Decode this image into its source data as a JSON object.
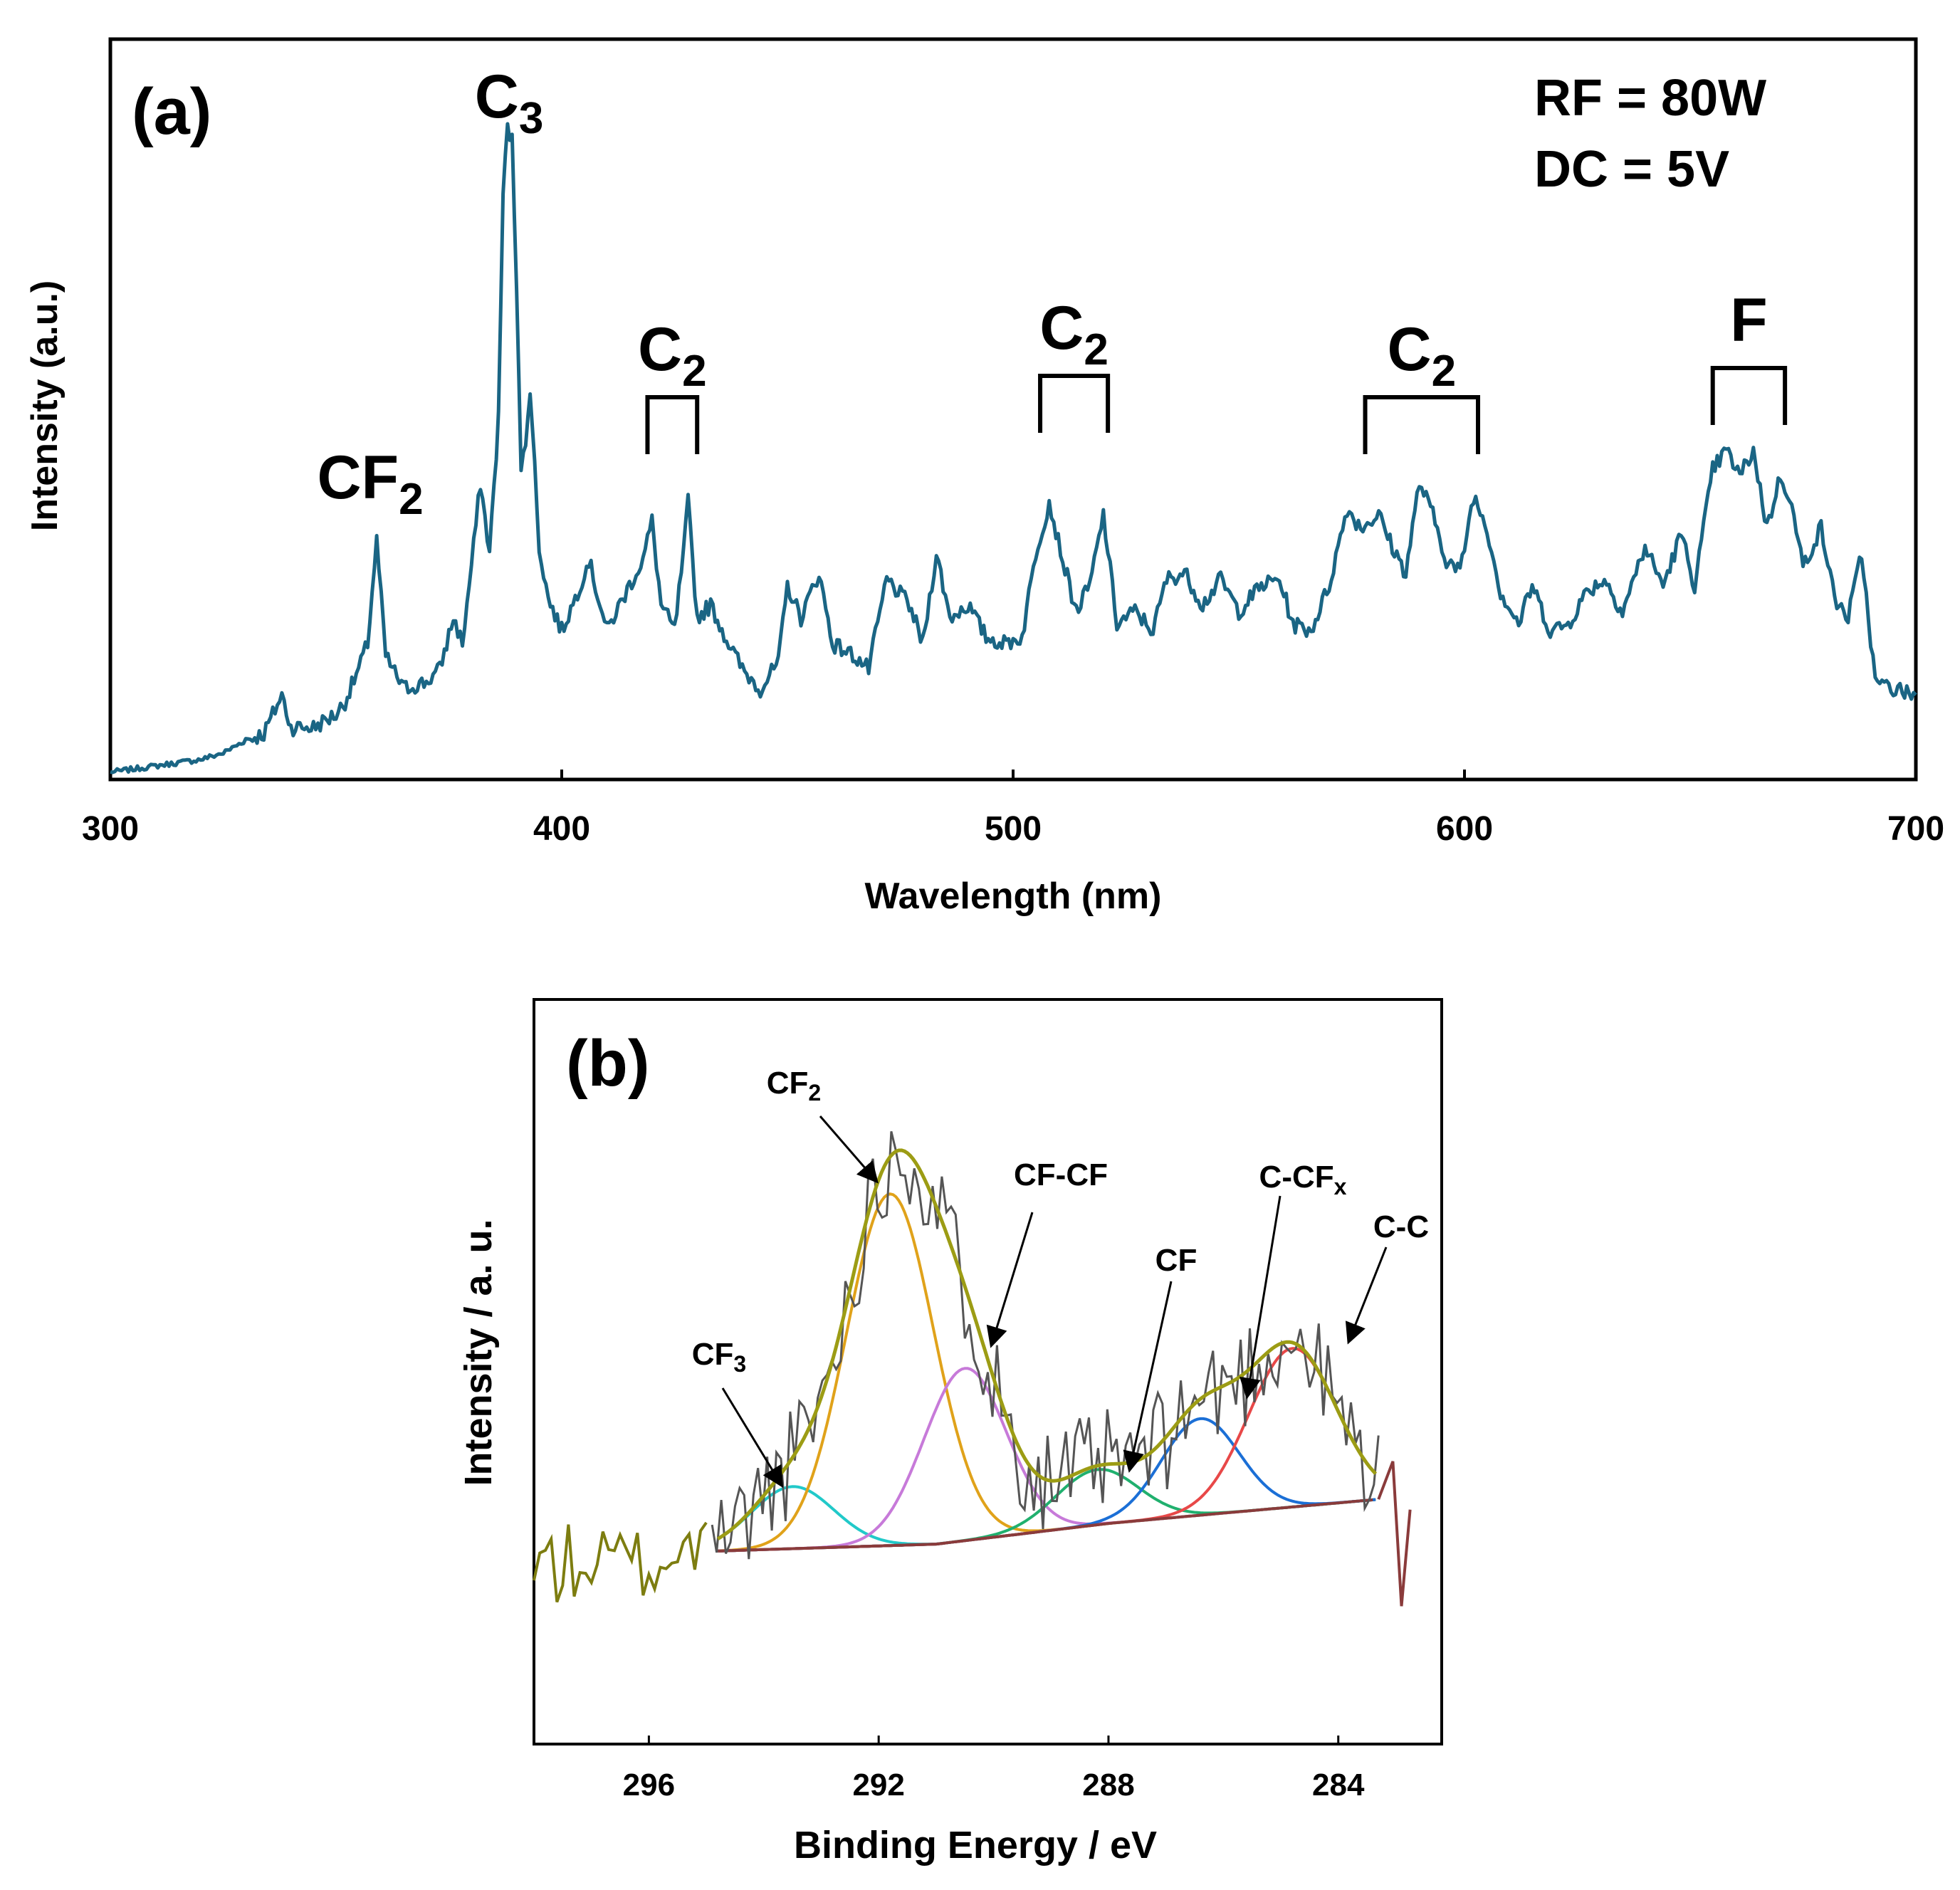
{
  "chart_data": [
    {
      "panel": "(a)",
      "type": "line",
      "xlabel": "Wavelength (nm)",
      "ylabel": "Intensity (a.u.)",
      "xlim": [
        300,
        700
      ],
      "ylim": [
        0,
        100
      ],
      "xticks": [
        300,
        400,
        500,
        600,
        700
      ],
      "line_color": "#1a6584",
      "conditions": [
        "RF = 80W",
        "DC = 5V"
      ],
      "anchor_points": [
        [
          300,
          0
        ],
        [
          310,
          1
        ],
        [
          320,
          2
        ],
        [
          325,
          3
        ],
        [
          330,
          5
        ],
        [
          334,
          6
        ],
        [
          336,
          9
        ],
        [
          338,
          12
        ],
        [
          340,
          7
        ],
        [
          345,
          7
        ],
        [
          350,
          9
        ],
        [
          352,
          11
        ],
        [
          355,
          16
        ],
        [
          357,
          20
        ],
        [
          359,
          36
        ],
        [
          361,
          18
        ],
        [
          365,
          13
        ],
        [
          370,
          14
        ],
        [
          373,
          16
        ],
        [
          376,
          24
        ],
        [
          378,
          20
        ],
        [
          380,
          32
        ],
        [
          382,
          45
        ],
        [
          384,
          34
        ],
        [
          386,
          55
        ],
        [
          387,
          90
        ],
        [
          388,
          100
        ],
        [
          389,
          98
        ],
        [
          390,
          76
        ],
        [
          391,
          48
        ],
        [
          392,
          50
        ],
        [
          393,
          60
        ],
        [
          395,
          35
        ],
        [
          397,
          27
        ],
        [
          400,
          22
        ],
        [
          403,
          27
        ],
        [
          406,
          33
        ],
        [
          410,
          22
        ],
        [
          415,
          29
        ],
        [
          418,
          33
        ],
        [
          420,
          39
        ],
        [
          422,
          26
        ],
        [
          425,
          22
        ],
        [
          427,
          34
        ],
        [
          428,
          42
        ],
        [
          430,
          24
        ],
        [
          433,
          26
        ],
        [
          437,
          20
        ],
        [
          440,
          16
        ],
        [
          444,
          13
        ],
        [
          448,
          17
        ],
        [
          450,
          29
        ],
        [
          453,
          24
        ],
        [
          457,
          31
        ],
        [
          460,
          20
        ],
        [
          465,
          18
        ],
        [
          468,
          16
        ],
        [
          472,
          30
        ],
        [
          477,
          26
        ],
        [
          480,
          20
        ],
        [
          483,
          34
        ],
        [
          486,
          24
        ],
        [
          490,
          26
        ],
        [
          494,
          21
        ],
        [
          498,
          20
        ],
        [
          502,
          21
        ],
        [
          505,
          34
        ],
        [
          508,
          42
        ],
        [
          511,
          33
        ],
        [
          514,
          25
        ],
        [
          517,
          29
        ],
        [
          520,
          40
        ],
        [
          523,
          23
        ],
        [
          527,
          25
        ],
        [
          531,
          22
        ],
        [
          534,
          30
        ],
        [
          538,
          31
        ],
        [
          542,
          26
        ],
        [
          546,
          30
        ],
        [
          550,
          25
        ],
        [
          555,
          29
        ],
        [
          559,
          30
        ],
        [
          562,
          23
        ],
        [
          566,
          22
        ],
        [
          570,
          29
        ],
        [
          574,
          41
        ],
        [
          577,
          38
        ],
        [
          581,
          40
        ],
        [
          584,
          35
        ],
        [
          587,
          31
        ],
        [
          590,
          45
        ],
        [
          593,
          40
        ],
        [
          596,
          33
        ],
        [
          599,
          31
        ],
        [
          602,
          43
        ],
        [
          605,
          38
        ],
        [
          608,
          28
        ],
        [
          612,
          23
        ],
        [
          615,
          29
        ],
        [
          619,
          22
        ],
        [
          623,
          23
        ],
        [
          627,
          28
        ],
        [
          631,
          30
        ],
        [
          635,
          25
        ],
        [
          640,
          35
        ],
        [
          644,
          29
        ],
        [
          648,
          37
        ],
        [
          651,
          29
        ],
        [
          655,
          47
        ],
        [
          658,
          50
        ],
        [
          661,
          46
        ],
        [
          664,
          50
        ],
        [
          667,
          38
        ],
        [
          670,
          46
        ],
        [
          672,
          43
        ],
        [
          675,
          32
        ],
        [
          679,
          38
        ],
        [
          682,
          27
        ],
        [
          685,
          24
        ],
        [
          688,
          34
        ],
        [
          691,
          14
        ],
        [
          695,
          13
        ],
        [
          700,
          12
        ]
      ],
      "annotations": [
        {
          "base": "CF",
          "sub": "2",
          "x": 358
        },
        {
          "base": "C",
          "sub": "3",
          "x": 388
        },
        {
          "base": "C",
          "sub": "2",
          "x": 425,
          "bracket": [
            419,
            430
          ]
        },
        {
          "base": "C",
          "sub": "2",
          "x": 512,
          "bracket": [
            506,
            521
          ]
        },
        {
          "base": "C",
          "sub": "2",
          "x": 590,
          "bracket": [
            578,
            603
          ]
        },
        {
          "base": "F",
          "sub": "",
          "x": 663,
          "bracket": [
            655,
            671
          ]
        }
      ]
    },
    {
      "panel": "(b)",
      "type": "line",
      "xlabel": "Binding Energy / eV",
      "ylabel": "Intensity / a. u.",
      "xlim": [
        298,
        282.2
      ],
      "ylim": [
        -8,
        100
      ],
      "xticks": [
        296,
        292,
        288,
        284
      ],
      "raw_spectrum": {
        "color": "#555555",
        "x_range": [
          294.9,
          283.3
        ]
      },
      "baseline": {
        "color": "#8a3b3b",
        "points": [
          [
            294.8,
            20
          ],
          [
            291,
            21
          ],
          [
            288,
            24
          ],
          [
            286,
            25.5
          ],
          [
            283.3,
            27.5
          ]
        ]
      },
      "noise_tail": {
        "color": "#7d7d10",
        "x_range": [
          298,
          294.9
        ],
        "level": 18
      },
      "components": [
        {
          "label_base": "CF",
          "label_sub": "3",
          "center": 293.5,
          "height": 9,
          "width": 0.85,
          "color": "#21c9c9"
        },
        {
          "label_base": "CF",
          "label_sub": "2",
          "center": 291.8,
          "height": 51,
          "width": 0.9,
          "color": "#e0a21a"
        },
        {
          "label_base": "CF-CF",
          "label_sub": "",
          "center": 290.5,
          "height": 25,
          "width": 0.85,
          "color": "#c77ad9"
        },
        {
          "label_base": "CF",
          "label_sub": "",
          "center": 288.2,
          "height": 8,
          "width": 0.85,
          "color": "#20b06e"
        },
        {
          "label_base": "C-CF",
          "label_sub": "x",
          "center": 286.4,
          "height": 14,
          "width": 0.8,
          "color": "#1b6fd6"
        },
        {
          "label_base": "C-C",
          "label_sub": "",
          "center": 284.8,
          "height": 23,
          "width": 0.9,
          "color": "#e84848"
        }
      ],
      "envelope_color": "#9c9c14"
    }
  ]
}
